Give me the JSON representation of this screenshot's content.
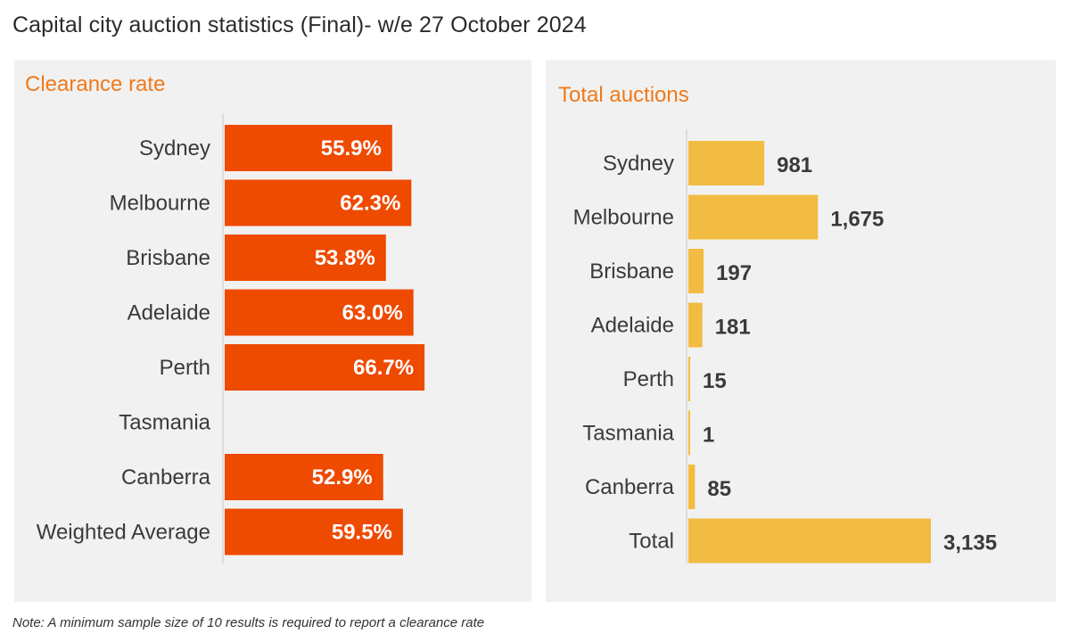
{
  "title": "Capital city auction statistics (Final)- w/e 27 October 2024",
  "note": "Note: A minimum sample size of 10 results is required to report a clearance rate",
  "colors": {
    "clearance_bar": "#ee4a00",
    "auction_bar": "#f2bb42",
    "panel_bg": "#f1f1f1",
    "panel_title": "#ef7a1a"
  },
  "chart_data": [
    {
      "type": "bar",
      "title": "Clearance rate",
      "orientation": "horizontal",
      "categories": [
        "Sydney",
        "Melbourne",
        "Brisbane",
        "Adelaide",
        "Perth",
        "Tasmania",
        "Canberra",
        "Weighted Average"
      ],
      "values": [
        55.9,
        62.3,
        53.8,
        63.0,
        66.7,
        null,
        52.9,
        59.5
      ],
      "labels": [
        "55.9%",
        "62.3%",
        "53.8%",
        "63.0%",
        "66.7%",
        "",
        "52.9%",
        "59.5%"
      ],
      "unit": "%",
      "xlim": [
        0,
        100
      ],
      "grid": false
    },
    {
      "type": "bar",
      "title": "Total auctions",
      "orientation": "horizontal",
      "categories": [
        "Sydney",
        "Melbourne",
        "Brisbane",
        "Adelaide",
        "Perth",
        "Tasmania",
        "Canberra",
        "Total"
      ],
      "values": [
        981,
        1675,
        197,
        181,
        15,
        1,
        85,
        3135
      ],
      "labels": [
        "981",
        "1,675",
        "197",
        "181",
        "15",
        "1",
        "85",
        "3,135"
      ],
      "xlim": [
        0,
        3135
      ],
      "grid": false
    }
  ]
}
